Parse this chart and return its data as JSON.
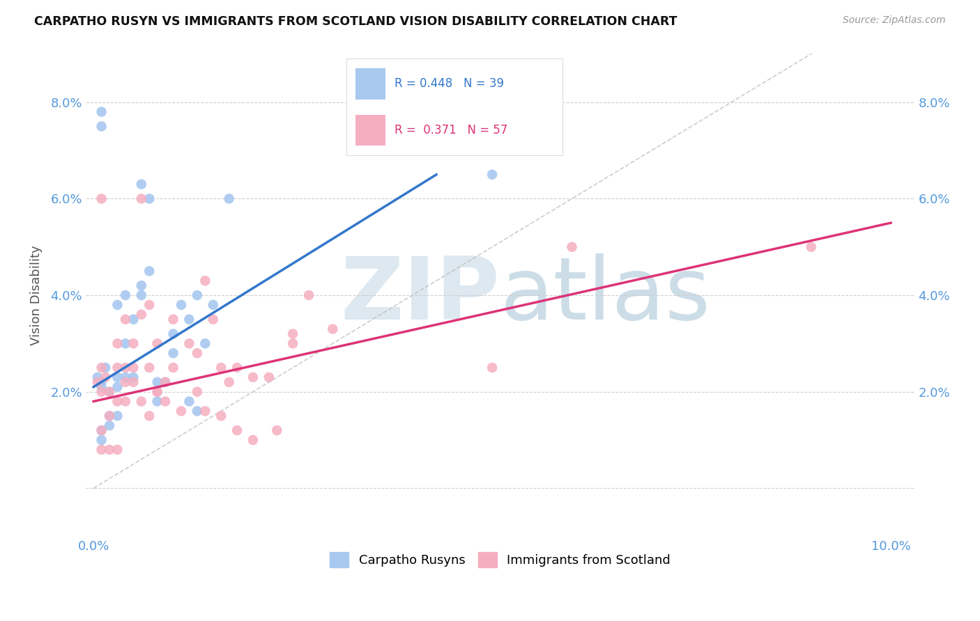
{
  "title": "CARPATHO RUSYN VS IMMIGRANTS FROM SCOTLAND VISION DISABILITY CORRELATION CHART",
  "source": "Source: ZipAtlas.com",
  "ylabel": "Vision Disability",
  "xlim": [
    -0.001,
    0.103
  ],
  "ylim": [
    -0.01,
    0.09
  ],
  "xtick_positions": [
    0.0,
    0.02,
    0.04,
    0.06,
    0.08,
    0.1
  ],
  "ytick_positions": [
    0.0,
    0.02,
    0.04,
    0.06,
    0.08
  ],
  "blue_R": 0.448,
  "blue_N": 39,
  "pink_R": 0.371,
  "pink_N": 57,
  "blue_scatter_color": "#a8c8f0",
  "pink_scatter_color": "#f5aec0",
  "blue_line_color": "#3377cc",
  "pink_line_color": "#dd3377",
  "tick_color": "#5599dd",
  "grid_color": "#cccccc",
  "diagonal_color": "#c0c0c0",
  "watermark_color": "#dde8f0",
  "blue_line_x": [
    0.0,
    0.043
  ],
  "blue_line_y": [
    0.021,
    0.065
  ],
  "pink_line_x": [
    0.0,
    0.1
  ],
  "pink_line_y": [
    0.018,
    0.055
  ],
  "blue_x": [
    0.0005,
    0.001,
    0.001,
    0.001,
    0.0015,
    0.002,
    0.002,
    0.003,
    0.003,
    0.004,
    0.004,
    0.005,
    0.006,
    0.006,
    0.007,
    0.007,
    0.008,
    0.009,
    0.01,
    0.01,
    0.011,
    0.012,
    0.013,
    0.014,
    0.015,
    0.017,
    0.003,
    0.004,
    0.005,
    0.006,
    0.008,
    0.012,
    0.001,
    0.001,
    0.001,
    0.002,
    0.003,
    0.013,
    0.05
  ],
  "blue_y": [
    0.023,
    0.022,
    0.021,
    0.075,
    0.025,
    0.02,
    0.015,
    0.023,
    0.038,
    0.04,
    0.03,
    0.035,
    0.042,
    0.063,
    0.06,
    0.045,
    0.022,
    0.022,
    0.028,
    0.032,
    0.038,
    0.035,
    0.04,
    0.03,
    0.038,
    0.06,
    0.021,
    0.023,
    0.023,
    0.04,
    0.018,
    0.018,
    0.012,
    0.01,
    0.078,
    0.013,
    0.015,
    0.016,
    0.065
  ],
  "pink_x": [
    0.0005,
    0.001,
    0.001,
    0.001,
    0.0015,
    0.002,
    0.002,
    0.003,
    0.003,
    0.004,
    0.004,
    0.005,
    0.005,
    0.006,
    0.006,
    0.007,
    0.007,
    0.008,
    0.008,
    0.009,
    0.01,
    0.01,
    0.012,
    0.013,
    0.014,
    0.015,
    0.016,
    0.017,
    0.018,
    0.02,
    0.022,
    0.025,
    0.027,
    0.003,
    0.004,
    0.005,
    0.006,
    0.007,
    0.008,
    0.009,
    0.011,
    0.013,
    0.014,
    0.016,
    0.018,
    0.02,
    0.023,
    0.002,
    0.001,
    0.001,
    0.003,
    0.004,
    0.05,
    0.09,
    0.06,
    0.025,
    0.03
  ],
  "pink_y": [
    0.022,
    0.025,
    0.02,
    0.06,
    0.023,
    0.02,
    0.015,
    0.025,
    0.03,
    0.035,
    0.022,
    0.025,
    0.03,
    0.06,
    0.036,
    0.038,
    0.025,
    0.03,
    0.02,
    0.022,
    0.025,
    0.035,
    0.03,
    0.028,
    0.043,
    0.035,
    0.025,
    0.022,
    0.025,
    0.023,
    0.023,
    0.03,
    0.04,
    0.018,
    0.025,
    0.022,
    0.018,
    0.015,
    0.02,
    0.018,
    0.016,
    0.02,
    0.016,
    0.015,
    0.012,
    0.01,
    0.012,
    0.008,
    0.012,
    0.008,
    0.008,
    0.018,
    0.025,
    0.05,
    0.05,
    0.032,
    0.033
  ]
}
